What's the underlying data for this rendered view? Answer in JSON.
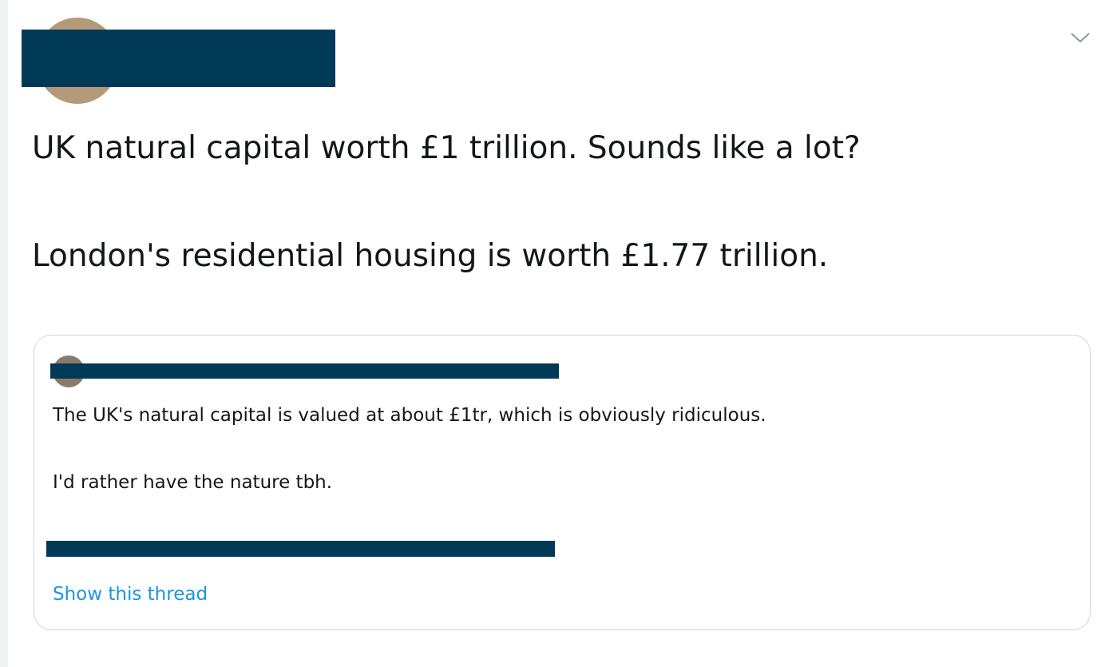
{
  "tweet": {
    "text": [
      "UK natural capital worth £1 trillion. Sounds like a lot?",
      "London's residential housing is worth £1.77 trillion."
    ],
    "quoted_tweet": {
      "text": [
        "The UK's natural capital is valued at about £1tr, which is obviously ridiculous.",
        "I'd rather have the nature tbh."
      ],
      "show_thread": "Show this thread"
    }
  }
}
